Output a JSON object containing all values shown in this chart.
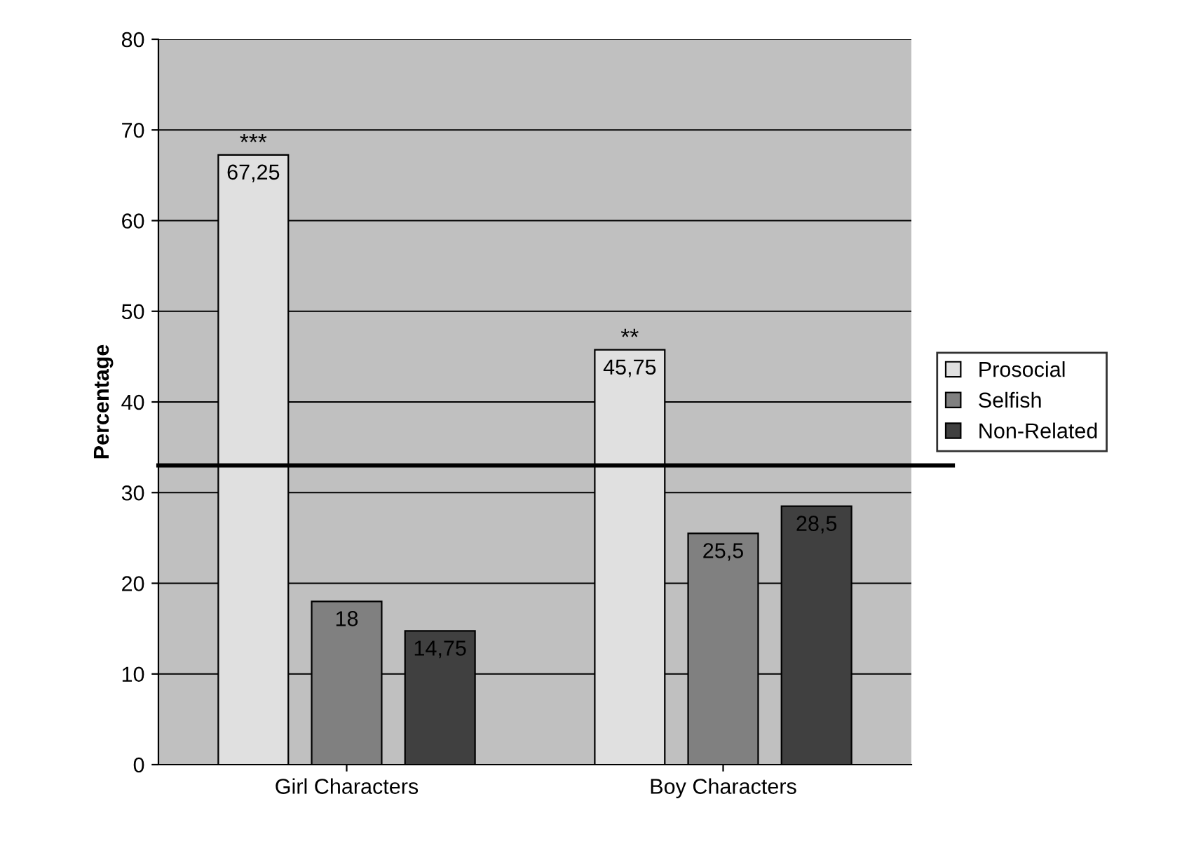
{
  "chart_data": {
    "type": "bar",
    "ylabel": "Percentage",
    "categories": [
      "Girl Characters",
      "Boy Characters"
    ],
    "series": [
      {
        "name": "Prosocial",
        "color": "#e0e0e0",
        "values": [
          67.25,
          45.75
        ],
        "value_labels": [
          "67,25",
          "45,75"
        ]
      },
      {
        "name": "Selfish",
        "color": "#808080",
        "values": [
          18,
          25.5
        ],
        "value_labels": [
          "18",
          "25,5"
        ]
      },
      {
        "name": "Non-Related",
        "color": "#404040",
        "values": [
          14.75,
          28.5
        ],
        "value_labels": [
          "14,75",
          "28,5"
        ]
      }
    ],
    "ylim": [
      0,
      80
    ],
    "yticks": [
      0,
      10,
      20,
      30,
      40,
      50,
      60,
      70,
      80
    ],
    "grid": "y",
    "legend": "right",
    "ref_lines": [
      {
        "axis": "y",
        "value": 33,
        "color": "#000000"
      }
    ],
    "annotations": [
      "***",
      "**"
    ]
  }
}
